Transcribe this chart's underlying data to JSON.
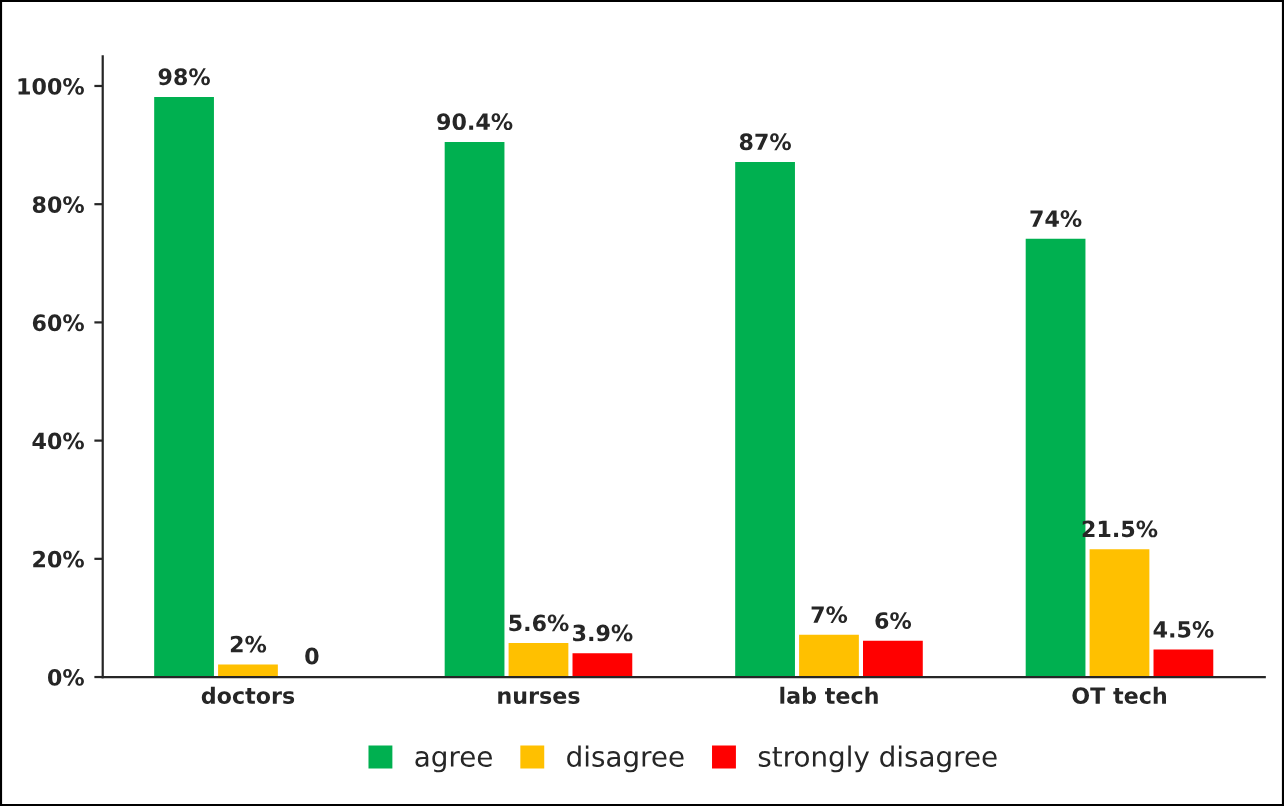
{
  "chart_data": {
    "type": "bar",
    "categories": [
      "doctors",
      "nurses",
      "lab tech",
      "OT tech"
    ],
    "series": [
      {
        "name": "agree",
        "color": "#00b050",
        "values": [
          98,
          90.4,
          87,
          74
        ],
        "value_labels": [
          "98%",
          "90.4%",
          "87%",
          "74%"
        ]
      },
      {
        "name": "disagree",
        "color": "#ffc000",
        "values": [
          2,
          5.6,
          7,
          21.5
        ],
        "value_labels": [
          "2%",
          "5.6%",
          "7%",
          "21.5%"
        ]
      },
      {
        "name": "strongly disagree",
        "color": "#ff0000",
        "values": [
          0,
          3.9,
          6,
          4.5
        ],
        "value_labels": [
          "0",
          "3.9%",
          "6%",
          "4.5%"
        ]
      }
    ],
    "ylim": [
      0,
      105
    ],
    "yticks": [
      {
        "value": 0,
        "label": "0%"
      },
      {
        "value": 20,
        "label": "20%"
      },
      {
        "value": 40,
        "label": "40%"
      },
      {
        "value": 60,
        "label": "60%"
      },
      {
        "value": 80,
        "label": "80%"
      },
      {
        "value": 100,
        "label": "100%"
      }
    ],
    "grid": false,
    "legend": "bottom"
  }
}
